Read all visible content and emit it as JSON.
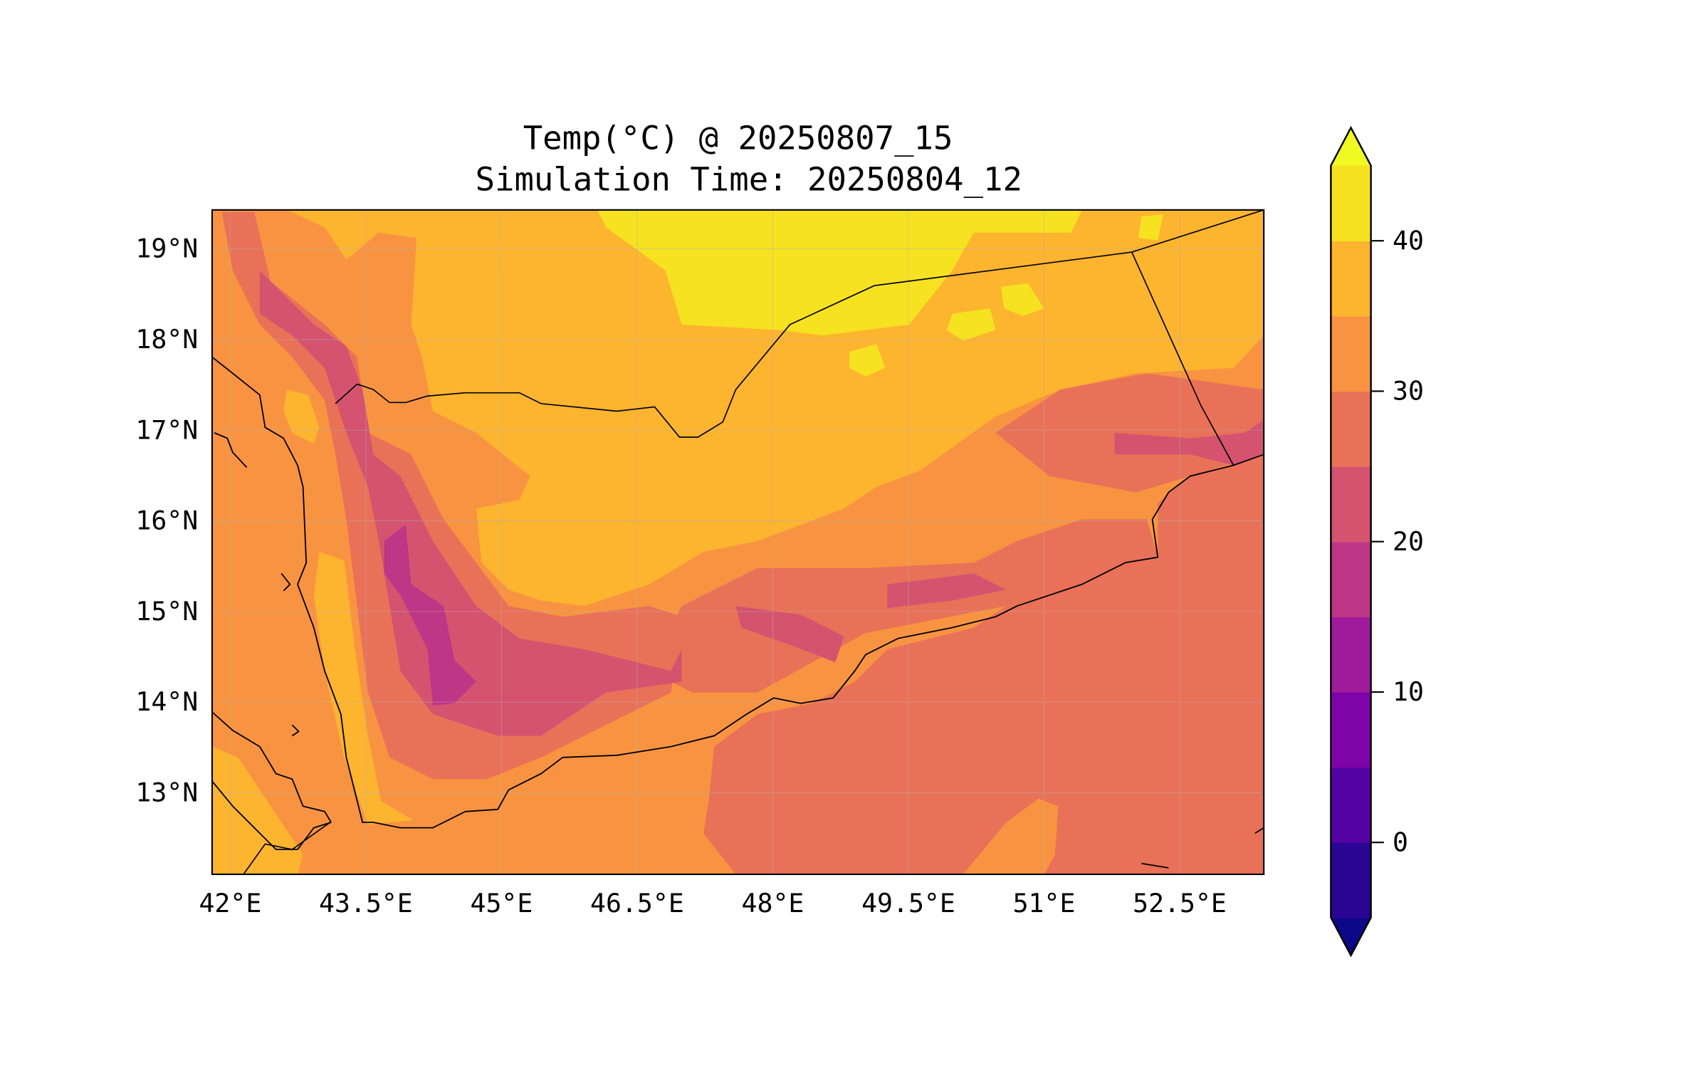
{
  "chart_data": {
    "type": "heatmap",
    "subtype": "filled-contour-map",
    "title": "Temp(°C) @ 20250807_15",
    "subtitle": "Simulation Time: 20250804_12",
    "xlabel": "",
    "ylabel": "",
    "lon_range": [
      41.8,
      53.43
    ],
    "lat_range": [
      12.1,
      19.43
    ],
    "lon_ticks": [
      42,
      43.5,
      45,
      46.5,
      48,
      49.5,
      51,
      52.5
    ],
    "lon_tick_labels": [
      "42°E",
      "43.5°E",
      "45°E",
      "46.5°E",
      "48°E",
      "49.5°E",
      "51°E",
      "52.5°E"
    ],
    "lat_ticks": [
      19,
      18,
      17,
      16,
      15,
      14,
      13
    ],
    "lat_tick_labels": [
      "19°N",
      "18°N",
      "17°N",
      "16°N",
      "15°N",
      "14°N",
      "13°N"
    ],
    "grid": true,
    "colorbar": {
      "placement": "right",
      "levels": [
        -5,
        0,
        5,
        10,
        15,
        20,
        25,
        30,
        35,
        40,
        45
      ],
      "colors": [
        "#2a0593",
        "#5402a3",
        "#7e03a8",
        "#a01a9c",
        "#bd3786",
        "#d5536f",
        "#e97158",
        "#f89441",
        "#fdb42f",
        "#f6e221"
      ],
      "under_color": "#0d0887",
      "over_color": "#f0f921",
      "extend": "both",
      "ticks": [
        0,
        10,
        20,
        30,
        40
      ],
      "tick_labels": [
        "0",
        "10",
        "20",
        "30",
        "40"
      ]
    },
    "observed_range_degC": [
      15,
      45
    ]
  }
}
